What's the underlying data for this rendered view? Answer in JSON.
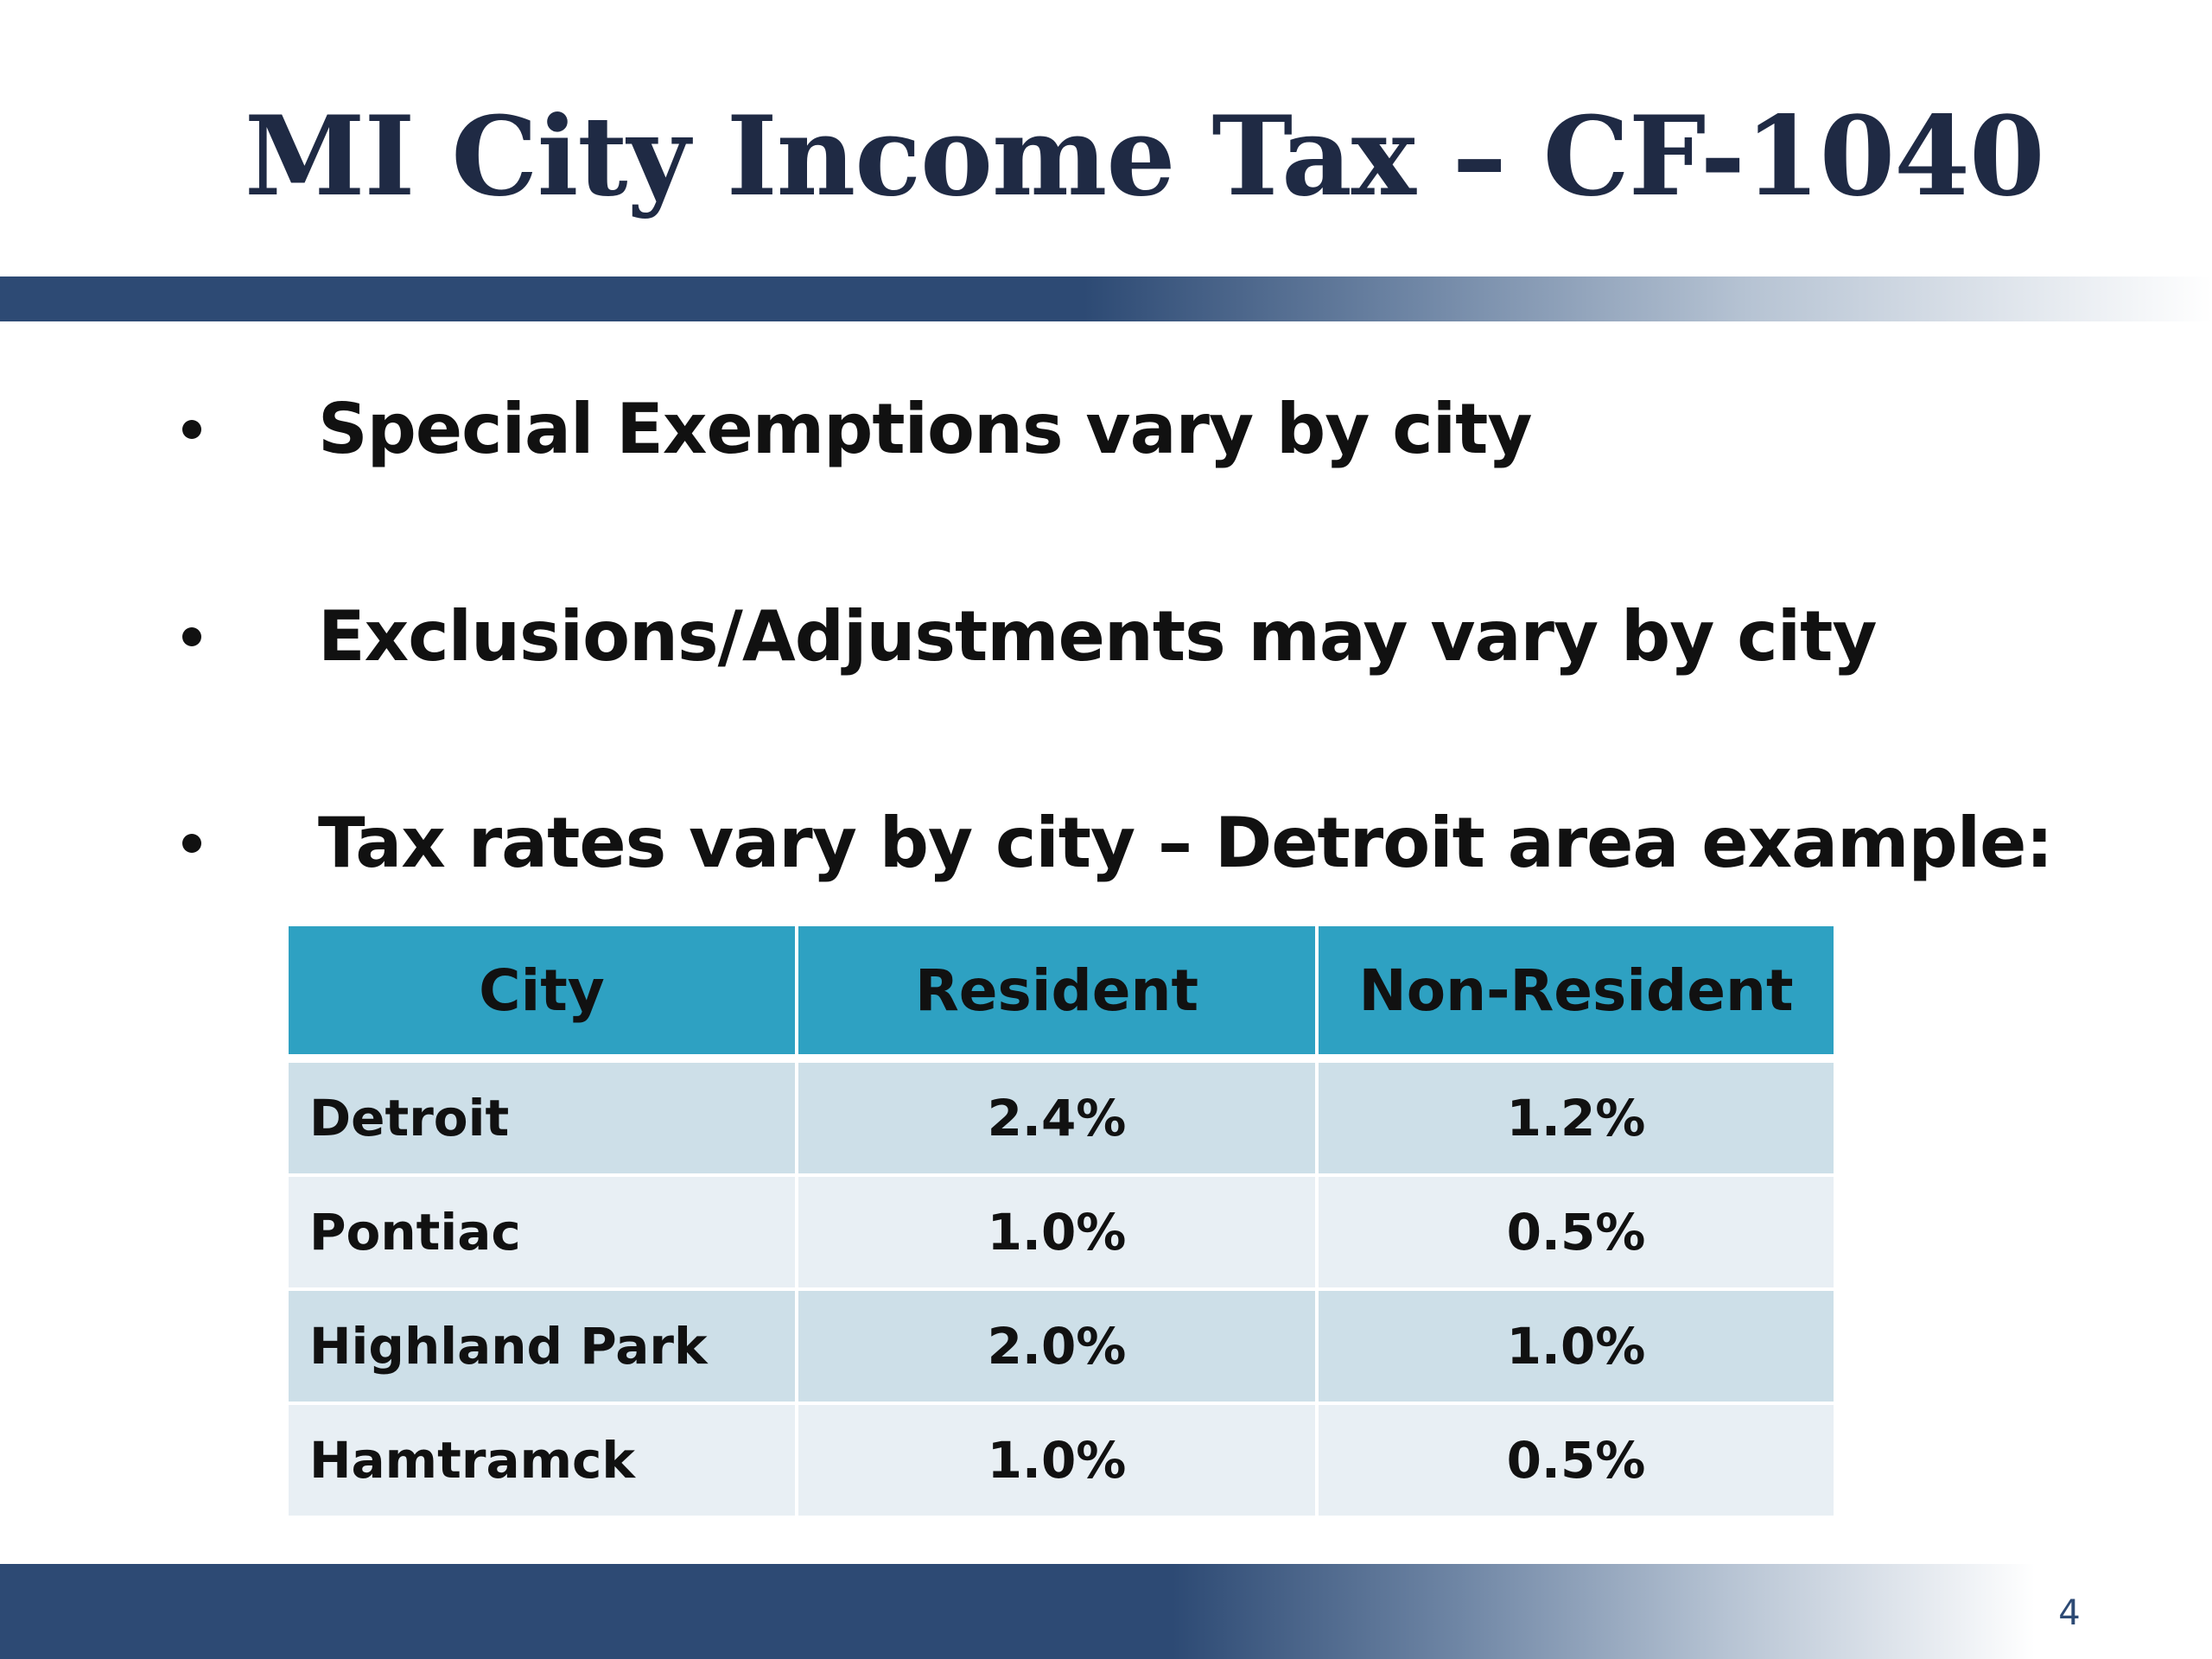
{
  "slide": {
    "title": "MI City Income Tax – CF-1040",
    "page_number": "4"
  },
  "bullets": [
    "Special Exemptions vary by city",
    "Exclusions/Adjustments may vary by city",
    "Tax rates vary by city – Detroit area example:"
  ],
  "table": {
    "headers": [
      "City",
      "Resident",
      "Non-Resident"
    ],
    "rows": [
      {
        "city": "Detroit",
        "resident": "2.4%",
        "non_resident": "1.2%"
      },
      {
        "city": "Pontiac",
        "resident": "1.0%",
        "non_resident": "0.5%"
      },
      {
        "city": "Highland Park",
        "resident": "2.0%",
        "non_resident": "1.0%"
      },
      {
        "city": "Hamtramck",
        "resident": "1.0%",
        "non_resident": "0.5%"
      }
    ]
  },
  "colors": {
    "title_text": "#1f2a44",
    "accent_bar": "#2d4a74",
    "table_header": "#2ea1c2",
    "table_row_dark": "#cddfe8",
    "table_row_light": "#e8eff4"
  }
}
